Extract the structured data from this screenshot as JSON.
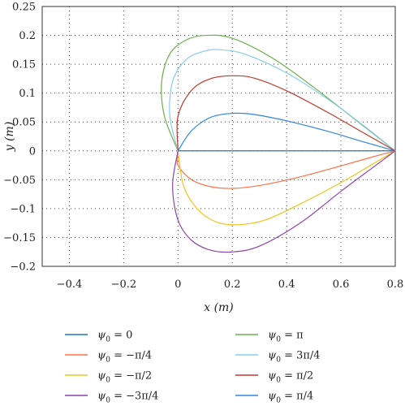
{
  "chart_data": {
    "type": "line",
    "xlabel": "x (m)",
    "ylabel": "y (m)",
    "xlim": [
      -0.5,
      0.8
    ],
    "ylim": [
      -0.2,
      0.25
    ],
    "x_ticks": [
      "−0.4",
      "−0.2",
      "0",
      "0.2",
      "0.4",
      "0.6",
      "0.8"
    ],
    "x_tick_values": [
      -0.4,
      -0.2,
      0,
      0.2,
      0.4,
      0.6,
      0.8
    ],
    "y_ticks": [
      "0.25",
      "0.2",
      "0.15",
      "0.1",
      "0.05",
      "0",
      "−0.05",
      "−0.1",
      "−0.15",
      "−0.2"
    ],
    "y_tick_values": [
      0.25,
      0.2,
      0.15,
      0.1,
      0.05,
      0,
      -0.05,
      -0.1,
      -0.15,
      -0.2
    ],
    "grid": true,
    "legend_position": "below",
    "series": [
      {
        "name": "ψ0 = 0",
        "color": "#1f77b4",
        "x": [
          0,
          0.8
        ],
        "y": [
          0,
          0
        ]
      },
      {
        "name": "ψ0 = −π/4",
        "color": "#ff7043",
        "x": [
          0,
          0.0,
          0.05,
          0.12,
          0.2,
          0.3,
          0.45,
          0.6,
          0.72,
          0.8
        ],
        "y": [
          0,
          -0.025,
          -0.05,
          -0.062,
          -0.065,
          -0.06,
          -0.045,
          -0.026,
          -0.01,
          0
        ]
      },
      {
        "name": "ψ0 = −π/2",
        "color": "#f2c418",
        "x": [
          0,
          0.02,
          0.07,
          0.14,
          0.22,
          0.32,
          0.45,
          0.6,
          0.72,
          0.8
        ],
        "y": [
          0,
          -0.06,
          -0.1,
          -0.123,
          -0.128,
          -0.12,
          -0.092,
          -0.055,
          -0.022,
          0
        ]
      },
      {
        "name": "ψ0 = −3π/4",
        "color": "#8e44ad",
        "x": [
          0,
          -0.02,
          0.0,
          0.05,
          0.12,
          0.2,
          0.3,
          0.45,
          0.6,
          0.72,
          0.8
        ],
        "y": [
          0,
          -0.06,
          -0.12,
          -0.155,
          -0.172,
          -0.175,
          -0.165,
          -0.125,
          -0.07,
          -0.028,
          0
        ]
      },
      {
        "name": "ψ0 = π",
        "color": "#6ab04c",
        "x": [
          0,
          -0.05,
          -0.06,
          -0.03,
          0.03,
          0.1,
          0.2,
          0.35,
          0.5,
          0.65,
          0.8
        ],
        "y": [
          0,
          0.06,
          0.12,
          0.168,
          0.192,
          0.2,
          0.195,
          0.16,
          0.11,
          0.055,
          0
        ]
      },
      {
        "name": "ψ0 = 3π/4",
        "color": "#87ceeb",
        "x": [
          0,
          -0.03,
          -0.02,
          0.03,
          0.1,
          0.16,
          0.25,
          0.4,
          0.55,
          0.68,
          0.8
        ],
        "y": [
          0,
          0.06,
          0.12,
          0.158,
          0.173,
          0.175,
          0.167,
          0.135,
          0.09,
          0.045,
          0
        ]
      },
      {
        "name": "ψ0 = π/2",
        "color": "#c0392b",
        "x": [
          0,
          0.0,
          0.05,
          0.12,
          0.2,
          0.28,
          0.4,
          0.55,
          0.68,
          0.8
        ],
        "y": [
          0,
          0.06,
          0.105,
          0.125,
          0.13,
          0.126,
          0.104,
          0.067,
          0.032,
          0
        ]
      },
      {
        "name": "ψ0 = π/4",
        "color": "#2e86de",
        "x": [
          0,
          0.05,
          0.12,
          0.2,
          0.28,
          0.4,
          0.55,
          0.68,
          0.8
        ],
        "y": [
          0,
          0.035,
          0.058,
          0.065,
          0.063,
          0.052,
          0.034,
          0.016,
          0
        ]
      }
    ],
    "legend_entries": [
      {
        "symbol": "ψ",
        "sub": "0",
        "rest": " = 0"
      },
      {
        "symbol": "ψ",
        "sub": "0",
        "rest": " = −π/4"
      },
      {
        "symbol": "ψ",
        "sub": "0",
        "rest": " = −π/2"
      },
      {
        "symbol": "ψ",
        "sub": "0",
        "rest": " = −3π/4"
      },
      {
        "symbol": "ψ",
        "sub": "0",
        "rest": " = π"
      },
      {
        "symbol": "ψ",
        "sub": "0",
        "rest": " = 3π/4"
      },
      {
        "symbol": "ψ",
        "sub": "0",
        "rest": " = π/2"
      },
      {
        "symbol": "ψ",
        "sub": "0",
        "rest": " = π/4"
      }
    ]
  }
}
